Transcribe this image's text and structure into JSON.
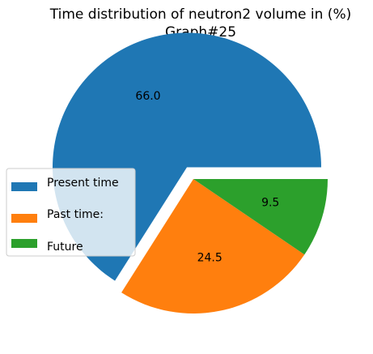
{
  "chart_data": {
    "type": "pie",
    "title": "Time distribution of neutron2 volume in (%)",
    "subtitle": "Graph#25",
    "categories": [
      "Present time",
      "Past time:",
      "Future"
    ],
    "values": [
      66.0,
      24.5,
      9.5
    ],
    "value_labels": [
      "66.0",
      "24.5",
      "9.5"
    ],
    "colors": [
      "#1f77b4",
      "#ff7f0e",
      "#2ca02c"
    ],
    "explode": [
      0.1,
      0,
      0
    ],
    "start_angle_deg": 0,
    "direction": "counterclockwise",
    "legend_position": "center-left"
  }
}
